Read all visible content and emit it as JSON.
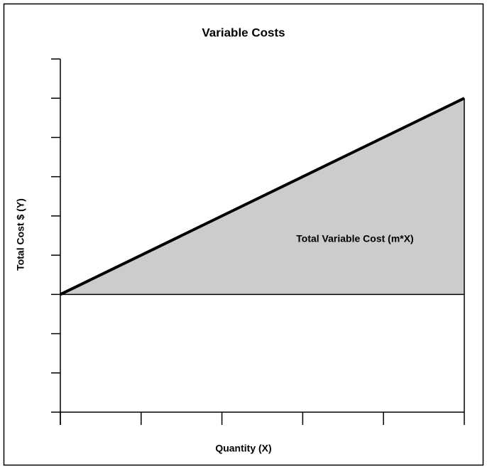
{
  "chart_data": {
    "type": "line",
    "title": "Variable Costs",
    "x_label": "Quantity (X)",
    "y_label": "Total Cost $ (Y)",
    "annotation": "Total Variable Cost (m*X)",
    "x": [
      0,
      5
    ],
    "values": [
      0,
      5
    ],
    "color": "#000000",
    "fill": true,
    "fill_color": "#cccccc",
    "xlim": [
      0,
      5
    ],
    "xticks": [
      0,
      1,
      2,
      3,
      4,
      5
    ],
    "ylim": [
      -3,
      6
    ],
    "yticks": [
      -3,
      -2,
      -1,
      0,
      1,
      2,
      3,
      4,
      5,
      6
    ]
  }
}
